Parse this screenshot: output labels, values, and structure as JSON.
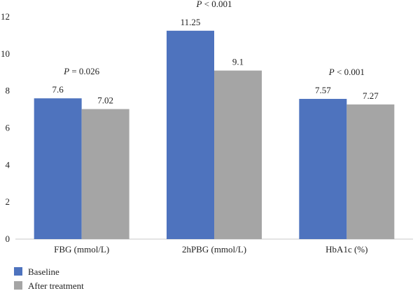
{
  "chart_data": {
    "type": "bar",
    "categories": [
      "FBG (mmol/L)",
      "2hPBG (mmol/L)",
      "HbA1c (%)"
    ],
    "series": [
      {
        "name": "Baseline",
        "values": [
          7.6,
          11.25,
          7.57
        ],
        "labels": [
          "7.6",
          "11.25",
          "7.57"
        ],
        "color": "#4e73be"
      },
      {
        "name": "After treatment",
        "values": [
          7.02,
          9.1,
          7.27
        ],
        "labels": [
          "7.02",
          "9.1",
          "7.27"
        ],
        "color": "#a5a5a5"
      }
    ],
    "annotations": [
      {
        "category": "FBG (mmol/L)",
        "prefix": "P",
        "text": " = 0.026"
      },
      {
        "category": "2hPBG (mmol/L)",
        "prefix": "P",
        "text": " < 0.001"
      },
      {
        "category": "HbA1c (%)",
        "prefix": "P",
        "text": " < 0.001"
      }
    ],
    "yticks": [
      "0",
      "2",
      "4",
      "6",
      "8",
      "10",
      "12"
    ],
    "ylim": [
      0,
      12
    ],
    "grid": false,
    "legend_position": "bottom-left"
  }
}
